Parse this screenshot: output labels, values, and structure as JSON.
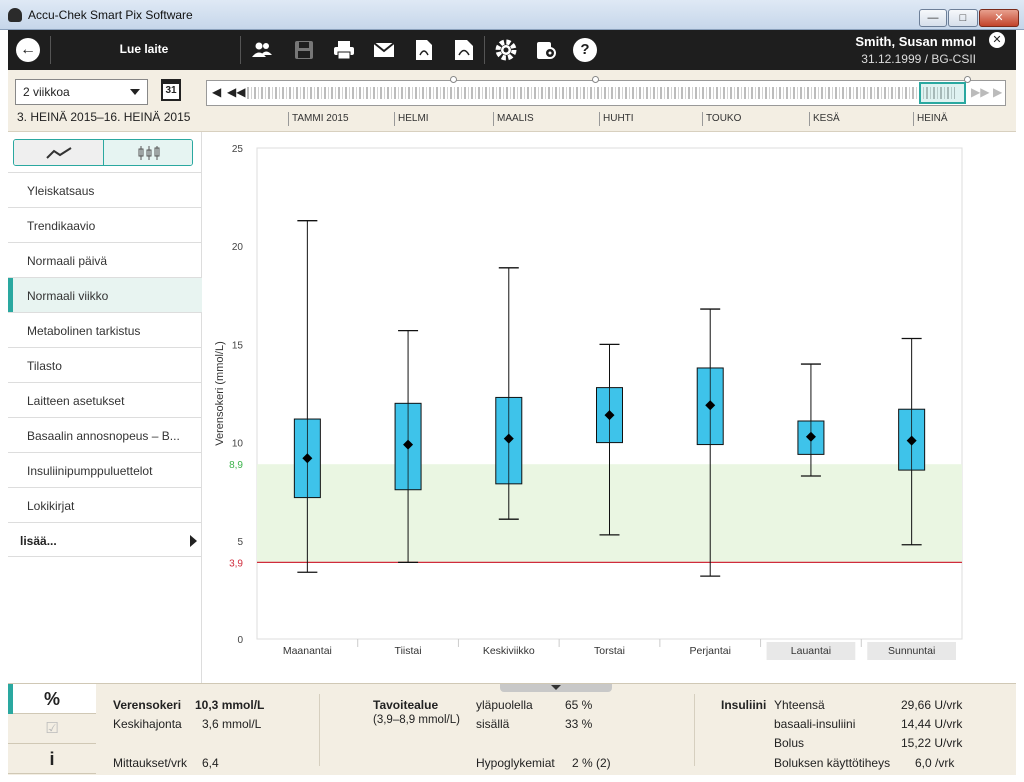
{
  "window": {
    "title": "Accu-Chek Smart Pix Software",
    "controls": {
      "minimize": "—",
      "maximize": "□",
      "close": "✕"
    }
  },
  "toolbar": {
    "read_device": "Lue laite",
    "patient_name": "Smith, Susan mmol",
    "patient_info": "31.12.1999 / BG-CSII",
    "icons": [
      "users-icon",
      "save-icon",
      "print-icon",
      "mail-icon",
      "pdf-icon",
      "pdf-export-icon",
      "settings-icon",
      "device-settings-icon",
      "help-icon"
    ],
    "help": "?",
    "close": "✕"
  },
  "period": {
    "selected": "2 viikkoa",
    "calendar_day": "31",
    "range": "3. HEINÄ 2015–16. HEINÄ 2015",
    "months": [
      "TAMMI 2015",
      "HELMI",
      "MAALIS",
      "HUHTI",
      "TOUKO",
      "KESÄ",
      "HEINÄ"
    ]
  },
  "sidebar": {
    "toggle_line": "⌇",
    "toggle_box": "Ⅰ⊟Ⅰ",
    "items": [
      {
        "label": "Yleiskatsaus"
      },
      {
        "label": "Trendikaavio"
      },
      {
        "label": "Normaali päivä"
      },
      {
        "label": "Normaali viikko",
        "active": true
      },
      {
        "label": "Metabolinen tarkistus"
      },
      {
        "label": "Tilasto"
      },
      {
        "label": "Laitteen asetukset"
      },
      {
        "label": "Basaalin annosnopeus – B..."
      },
      {
        "label": "Insuliinipumppuluettelot"
      },
      {
        "label": "Lokikirjat"
      }
    ],
    "more": "lisää..."
  },
  "chart_data": {
    "type": "boxplot",
    "ylabel": "Verensokeri (mmol/L)",
    "ylim": [
      0,
      25
    ],
    "yticks": [
      0,
      5,
      10,
      15,
      20,
      25
    ],
    "target_range": {
      "low": 3.9,
      "high": 8.9,
      "low_label": "3,9",
      "high_label": "8,9"
    },
    "colors": {
      "box": "#3ec3ea",
      "target": "#eaf6e2",
      "hypo_line": "#d02c3c",
      "high_label": "#3cb44b",
      "low_label": "#d02c3c"
    },
    "categories": [
      "Maanantai",
      "Tiistai",
      "Keskiviikko",
      "Torstai",
      "Perjantai",
      "Lauantai",
      "Sunnuntai"
    ],
    "weekend": [
      false,
      false,
      false,
      false,
      false,
      true,
      true
    ],
    "series": [
      {
        "name": "Maanantai",
        "min": 3.4,
        "q1": 7.2,
        "mean": 9.2,
        "q3": 11.2,
        "max": 21.3
      },
      {
        "name": "Tiistai",
        "min": 3.9,
        "q1": 7.6,
        "mean": 9.9,
        "q3": 12.0,
        "max": 15.7
      },
      {
        "name": "Keskiviikko",
        "min": 6.1,
        "q1": 7.9,
        "mean": 10.2,
        "q3": 12.3,
        "max": 18.9
      },
      {
        "name": "Torstai",
        "min": 5.3,
        "q1": 10.0,
        "mean": 11.4,
        "q3": 12.8,
        "max": 15.0
      },
      {
        "name": "Perjantai",
        "min": 3.2,
        "q1": 9.9,
        "mean": 11.9,
        "q3": 13.8,
        "max": 16.8
      },
      {
        "name": "Lauantai",
        "min": 8.3,
        "q1": 9.4,
        "mean": 10.3,
        "q3": 11.1,
        "max": 14.0
      },
      {
        "name": "Sunnuntai",
        "min": 4.8,
        "q1": 8.6,
        "mean": 10.1,
        "q3": 11.7,
        "max": 15.3
      }
    ]
  },
  "bottom": {
    "tabs": [
      "%",
      "☑",
      "i"
    ],
    "bg": {
      "label": "Verensokeri",
      "value": "10,3 mmol/L",
      "sd_label": "Keskihajonta",
      "sd_value": "3,6 mmol/L",
      "tests_label": "Mittaukset/vrk",
      "tests_value": "6,4"
    },
    "target": {
      "label": "Tavoitealue",
      "range": "(3,9–8,9 mmol/L)",
      "above_label": "yläpuolella",
      "above_value": "65 %",
      "within_label": "sisällä",
      "within_value": "33 %",
      "hypo_label": "Hypoglykemiat",
      "hypo_value": "2 % (2)"
    },
    "insulin": {
      "label": "Insuliini",
      "total_label": "Yhteensä",
      "total_value": "29,66 U/vrk",
      "basal_label": "basaali-insuliini",
      "basal_value": "14,44 U/vrk",
      "bolus_label": "Bolus",
      "bolus_value": "15,22 U/vrk",
      "usage_label": "Boluksen käyttötiheys",
      "usage_value": "6,0 /vrk"
    }
  }
}
